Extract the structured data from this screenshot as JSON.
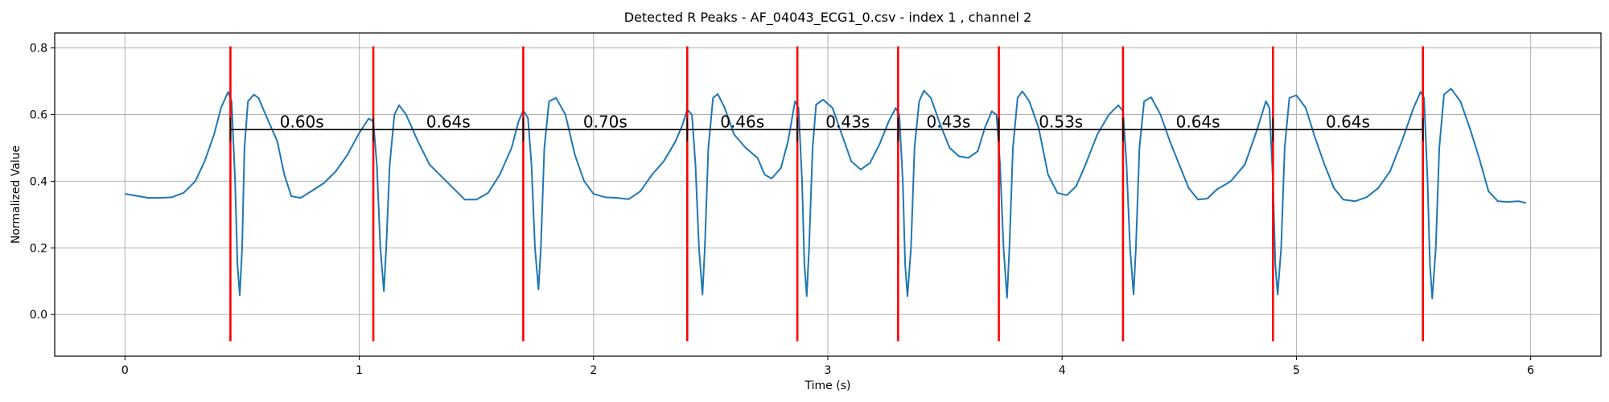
{
  "chart_data": {
    "type": "line",
    "title": "Detected R Peaks - AF_04043_ECG1_0.csv - index 1 , channel 2",
    "xlabel": "Time (s)",
    "ylabel": "Normalized Value",
    "xlim": [
      -0.3,
      6.3
    ],
    "ylim": [
      -0.125,
      0.845
    ],
    "x_ticks": [
      0,
      1,
      2,
      3,
      4,
      5,
      6
    ],
    "x_tick_labels": [
      "0",
      "1",
      "2",
      "3",
      "4",
      "5",
      "6"
    ],
    "y_ticks": [
      0.0,
      0.2,
      0.4,
      0.6,
      0.8
    ],
    "y_tick_labels": [
      "0.0",
      "0.2",
      "0.4",
      "0.6",
      "0.8"
    ],
    "grid": true,
    "colors": {
      "signal": "#1f77b4",
      "peaks": "#ff0000",
      "intervals": "#000000",
      "grid": "#b0b0b0"
    },
    "series": [
      {
        "points": [
          [
            0.0,
            0.362
          ],
          [
            0.05,
            0.356
          ],
          [
            0.1,
            0.35
          ],
          [
            0.15,
            0.35
          ],
          [
            0.2,
            0.352
          ],
          [
            0.25,
            0.365
          ],
          [
            0.3,
            0.4
          ],
          [
            0.34,
            0.46
          ],
          [
            0.38,
            0.54
          ],
          [
            0.41,
            0.62
          ],
          [
            0.44,
            0.668
          ],
          [
            0.455,
            0.64
          ],
          [
            0.47,
            0.4
          ],
          [
            0.48,
            0.15
          ],
          [
            0.49,
            0.058
          ],
          [
            0.5,
            0.2
          ],
          [
            0.51,
            0.5
          ],
          [
            0.525,
            0.64
          ],
          [
            0.55,
            0.66
          ],
          [
            0.57,
            0.65
          ],
          [
            0.6,
            0.6
          ],
          [
            0.65,
            0.52
          ],
          [
            0.68,
            0.42
          ],
          [
            0.71,
            0.355
          ],
          [
            0.75,
            0.35
          ],
          [
            0.8,
            0.372
          ],
          [
            0.85,
            0.395
          ],
          [
            0.9,
            0.43
          ],
          [
            0.95,
            0.48
          ],
          [
            1.0,
            0.545
          ],
          [
            1.04,
            0.588
          ],
          [
            1.06,
            0.58
          ],
          [
            1.075,
            0.45
          ],
          [
            1.09,
            0.2
          ],
          [
            1.105,
            0.07
          ],
          [
            1.115,
            0.2
          ],
          [
            1.13,
            0.45
          ],
          [
            1.15,
            0.6
          ],
          [
            1.17,
            0.628
          ],
          [
            1.2,
            0.6
          ],
          [
            1.25,
            0.52
          ],
          [
            1.3,
            0.45
          ],
          [
            1.4,
            0.38
          ],
          [
            1.45,
            0.345
          ],
          [
            1.5,
            0.345
          ],
          [
            1.55,
            0.365
          ],
          [
            1.6,
            0.42
          ],
          [
            1.65,
            0.5
          ],
          [
            1.68,
            0.58
          ],
          [
            1.7,
            0.612
          ],
          [
            1.72,
            0.59
          ],
          [
            1.735,
            0.45
          ],
          [
            1.75,
            0.2
          ],
          [
            1.765,
            0.075
          ],
          [
            1.775,
            0.2
          ],
          [
            1.79,
            0.5
          ],
          [
            1.81,
            0.64
          ],
          [
            1.84,
            0.65
          ],
          [
            1.88,
            0.6
          ],
          [
            1.92,
            0.48
          ],
          [
            1.96,
            0.4
          ],
          [
            2.0,
            0.362
          ],
          [
            2.05,
            0.352
          ],
          [
            2.1,
            0.35
          ],
          [
            2.15,
            0.346
          ],
          [
            2.2,
            0.37
          ],
          [
            2.25,
            0.42
          ],
          [
            2.3,
            0.46
          ],
          [
            2.35,
            0.52
          ],
          [
            2.38,
            0.57
          ],
          [
            2.4,
            0.615
          ],
          [
            2.42,
            0.6
          ],
          [
            2.435,
            0.45
          ],
          [
            2.45,
            0.2
          ],
          [
            2.465,
            0.06
          ],
          [
            2.475,
            0.2
          ],
          [
            2.49,
            0.5
          ],
          [
            2.51,
            0.65
          ],
          [
            2.53,
            0.662
          ],
          [
            2.56,
            0.62
          ],
          [
            2.6,
            0.54
          ],
          [
            2.65,
            0.5
          ],
          [
            2.7,
            0.47
          ],
          [
            2.73,
            0.42
          ],
          [
            2.76,
            0.408
          ],
          [
            2.8,
            0.44
          ],
          [
            2.83,
            0.52
          ],
          [
            2.86,
            0.64
          ],
          [
            2.875,
            0.62
          ],
          [
            2.89,
            0.4
          ],
          [
            2.9,
            0.15
          ],
          [
            2.91,
            0.055
          ],
          [
            2.92,
            0.2
          ],
          [
            2.935,
            0.5
          ],
          [
            2.95,
            0.63
          ],
          [
            2.98,
            0.645
          ],
          [
            3.02,
            0.62
          ],
          [
            3.06,
            0.54
          ],
          [
            3.1,
            0.46
          ],
          [
            3.14,
            0.435
          ],
          [
            3.18,
            0.455
          ],
          [
            3.22,
            0.51
          ],
          [
            3.26,
            0.58
          ],
          [
            3.29,
            0.62
          ],
          [
            3.305,
            0.6
          ],
          [
            3.32,
            0.4
          ],
          [
            3.33,
            0.15
          ],
          [
            3.34,
            0.055
          ],
          [
            3.355,
            0.2
          ],
          [
            3.37,
            0.5
          ],
          [
            3.39,
            0.64
          ],
          [
            3.41,
            0.672
          ],
          [
            3.44,
            0.65
          ],
          [
            3.48,
            0.57
          ],
          [
            3.52,
            0.5
          ],
          [
            3.56,
            0.475
          ],
          [
            3.6,
            0.47
          ],
          [
            3.64,
            0.49
          ],
          [
            3.67,
            0.56
          ],
          [
            3.7,
            0.61
          ],
          [
            3.72,
            0.6
          ],
          [
            3.735,
            0.45
          ],
          [
            3.75,
            0.2
          ],
          [
            3.765,
            0.05
          ],
          [
            3.775,
            0.2
          ],
          [
            3.79,
            0.5
          ],
          [
            3.81,
            0.65
          ],
          [
            3.83,
            0.67
          ],
          [
            3.86,
            0.64
          ],
          [
            3.9,
            0.56
          ],
          [
            3.94,
            0.42
          ],
          [
            3.98,
            0.365
          ],
          [
            4.02,
            0.358
          ],
          [
            4.06,
            0.385
          ],
          [
            4.1,
            0.45
          ],
          [
            4.15,
            0.54
          ],
          [
            4.2,
            0.6
          ],
          [
            4.24,
            0.628
          ],
          [
            4.26,
            0.61
          ],
          [
            4.275,
            0.45
          ],
          [
            4.29,
            0.2
          ],
          [
            4.305,
            0.06
          ],
          [
            4.315,
            0.2
          ],
          [
            4.33,
            0.5
          ],
          [
            4.35,
            0.64
          ],
          [
            4.38,
            0.652
          ],
          [
            4.42,
            0.6
          ],
          [
            4.46,
            0.52
          ],
          [
            4.5,
            0.45
          ],
          [
            4.54,
            0.38
          ],
          [
            4.58,
            0.345
          ],
          [
            4.62,
            0.348
          ],
          [
            4.66,
            0.375
          ],
          [
            4.72,
            0.4
          ],
          [
            4.78,
            0.45
          ],
          [
            4.83,
            0.55
          ],
          [
            4.87,
            0.64
          ],
          [
            4.885,
            0.62
          ],
          [
            4.9,
            0.4
          ],
          [
            4.91,
            0.15
          ],
          [
            4.92,
            0.06
          ],
          [
            4.935,
            0.2
          ],
          [
            4.95,
            0.5
          ],
          [
            4.97,
            0.65
          ],
          [
            5.0,
            0.658
          ],
          [
            5.04,
            0.62
          ],
          [
            5.08,
            0.53
          ],
          [
            5.12,
            0.45
          ],
          [
            5.16,
            0.38
          ],
          [
            5.2,
            0.345
          ],
          [
            5.25,
            0.34
          ],
          [
            5.3,
            0.352
          ],
          [
            5.35,
            0.38
          ],
          [
            5.4,
            0.43
          ],
          [
            5.45,
            0.52
          ],
          [
            5.5,
            0.62
          ],
          [
            5.53,
            0.668
          ],
          [
            5.545,
            0.65
          ],
          [
            5.56,
            0.4
          ],
          [
            5.57,
            0.15
          ],
          [
            5.58,
            0.048
          ],
          [
            5.595,
            0.2
          ],
          [
            5.61,
            0.5
          ],
          [
            5.63,
            0.66
          ],
          [
            5.66,
            0.678
          ],
          [
            5.7,
            0.64
          ],
          [
            5.74,
            0.56
          ],
          [
            5.78,
            0.47
          ],
          [
            5.82,
            0.37
          ],
          [
            5.86,
            0.34
          ],
          [
            5.9,
            0.338
          ],
          [
            5.95,
            0.34
          ],
          [
            5.98,
            0.335
          ]
        ]
      }
    ],
    "peaks": [
      0.45,
      1.06,
      1.7,
      2.4,
      2.87,
      3.3,
      3.73,
      4.26,
      4.9,
      5.54
    ],
    "peak_line_range": [
      -0.08,
      0.805
    ],
    "interval_bar_y": 0.555,
    "interval_tick_range": [
      0.52,
      0.59
    ],
    "interval_label_y": 0.562,
    "intervals": [
      "0.60s",
      "0.64s",
      "0.70s",
      "0.46s",
      "0.43s",
      "0.43s",
      "0.53s",
      "0.64s",
      "0.64s"
    ]
  }
}
